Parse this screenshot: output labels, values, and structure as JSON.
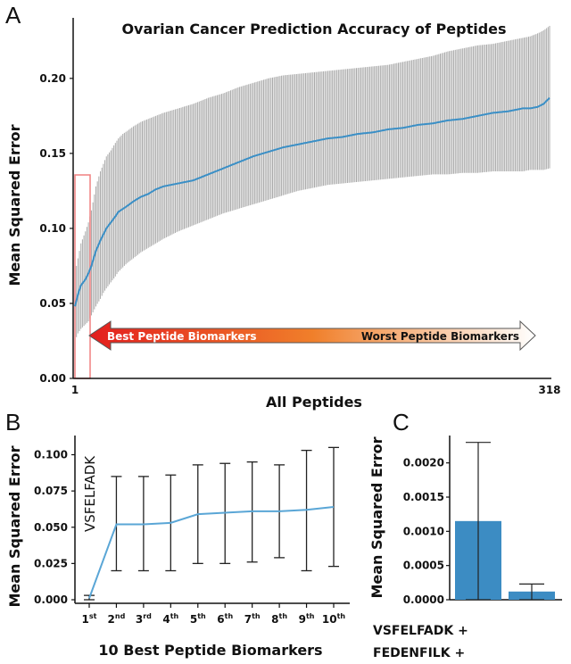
{
  "chart_data": [
    {
      "panel": "A",
      "type": "line",
      "title": "Ovarian Cancer Prediction Accuracy of Peptides",
      "xlabel": "All Peptides",
      "ylabel": "Mean Squared Error",
      "xlim": [
        1,
        318
      ],
      "ylim": [
        0,
        0.235
      ],
      "x_ticks": [
        "1",
        "318"
      ],
      "y_ticks": [
        "0.00",
        "0.05",
        "0.10",
        "0.15",
        "0.20"
      ],
      "series": [
        {
          "x": [
            1,
            3,
            5,
            8,
            10,
            12,
            15,
            18,
            20,
            22,
            25,
            28,
            30,
            33,
            36,
            40,
            45,
            50,
            55,
            60,
            70,
            80,
            90,
            100,
            110,
            120,
            130,
            140,
            150,
            160,
            170,
            180,
            190,
            200,
            210,
            220,
            230,
            240,
            250,
            260,
            270,
            280,
            290,
            300,
            305,
            310,
            314,
            318
          ],
          "mean": [
            0.048,
            0.056,
            0.062,
            0.066,
            0.07,
            0.075,
            0.085,
            0.092,
            0.096,
            0.1,
            0.104,
            0.108,
            0.111,
            0.113,
            0.115,
            0.118,
            0.121,
            0.123,
            0.126,
            0.128,
            0.13,
            0.132,
            0.136,
            0.14,
            0.144,
            0.148,
            0.151,
            0.154,
            0.156,
            0.158,
            0.16,
            0.161,
            0.163,
            0.164,
            0.166,
            0.167,
            0.169,
            0.17,
            0.172,
            0.173,
            0.175,
            0.177,
            0.178,
            0.18,
            0.18,
            0.181,
            0.183,
            0.187
          ],
          "upper": [
            0.07,
            0.08,
            0.09,
            0.098,
            0.104,
            0.112,
            0.128,
            0.138,
            0.143,
            0.148,
            0.152,
            0.157,
            0.16,
            0.163,
            0.165,
            0.168,
            0.171,
            0.173,
            0.175,
            0.177,
            0.18,
            0.183,
            0.187,
            0.19,
            0.194,
            0.197,
            0.2,
            0.202,
            0.203,
            0.204,
            0.205,
            0.206,
            0.207,
            0.208,
            0.209,
            0.211,
            0.213,
            0.215,
            0.218,
            0.22,
            0.222,
            0.223,
            0.225,
            0.227,
            0.228,
            0.23,
            0.232,
            0.235
          ],
          "lower": [
            0.025,
            0.03,
            0.033,
            0.036,
            0.038,
            0.042,
            0.048,
            0.053,
            0.057,
            0.06,
            0.064,
            0.068,
            0.071,
            0.074,
            0.077,
            0.08,
            0.084,
            0.087,
            0.09,
            0.093,
            0.098,
            0.102,
            0.106,
            0.11,
            0.113,
            0.116,
            0.119,
            0.122,
            0.125,
            0.127,
            0.129,
            0.13,
            0.131,
            0.132,
            0.133,
            0.134,
            0.135,
            0.136,
            0.136,
            0.137,
            0.137,
            0.138,
            0.138,
            0.138,
            0.139,
            0.139,
            0.139,
            0.14
          ]
        }
      ],
      "highlight_range_x": [
        1,
        10
      ],
      "arrow_left_label": "Best Peptide Biomarkers",
      "arrow_right_label": "Worst Peptide Biomarkers",
      "colors": {
        "line": "#3a8fc6",
        "error": "#a9a9a9",
        "arrow_left": "#e31e1e",
        "arrow_right": "#ffffff",
        "highlight": "#f08080"
      }
    },
    {
      "panel": "B",
      "type": "line",
      "xlabel": "10 Best Peptide Biomarkers",
      "ylabel": "Mean Squared Error",
      "ylim": [
        0,
        0.112
      ],
      "y_ticks": [
        "0.000",
        "0.025",
        "0.050",
        "0.075",
        "0.100"
      ],
      "categories": [
        [
          "1",
          "st"
        ],
        [
          "2",
          "nd"
        ],
        [
          "3",
          "rd"
        ],
        [
          "4",
          "th"
        ],
        [
          "5",
          "th"
        ],
        [
          "6",
          "th"
        ],
        [
          "7",
          "th"
        ],
        [
          "8",
          "th"
        ],
        [
          "9",
          "th"
        ],
        [
          "10",
          "th"
        ]
      ],
      "annotation": "VSFELFADK",
      "series": [
        {
          "values": [
            0.001,
            0.052,
            0.052,
            0.053,
            0.059,
            0.06,
            0.061,
            0.061,
            0.062,
            0.064
          ],
          "upper": [
            0.003,
            0.085,
            0.085,
            0.086,
            0.093,
            0.094,
            0.095,
            0.093,
            0.103,
            0.105
          ],
          "lower": [
            0.0,
            0.02,
            0.02,
            0.02,
            0.025,
            0.025,
            0.026,
            0.029,
            0.02,
            0.023
          ]
        }
      ],
      "colors": {
        "line": "#5aa6d6",
        "error": "#222222"
      }
    },
    {
      "panel": "C",
      "type": "bar",
      "ylabel": "Mean Squared Error",
      "ylim": [
        0,
        0.0024
      ],
      "y_ticks": [
        "0.0000",
        "0.0005",
        "0.0010",
        "0.0015",
        "0.0020"
      ],
      "categories": [
        "VSFELFADK +",
        "FEDENFILK +"
      ],
      "values": [
        0.00115,
        0.00012
      ],
      "error_upper": [
        0.0023,
        0.00023
      ],
      "error_lower": [
        0.0,
        0.0
      ],
      "colors": {
        "bar": "#3c8cc3",
        "error": "#222222"
      }
    }
  ],
  "panel_labels": [
    "A",
    "B",
    "C"
  ]
}
